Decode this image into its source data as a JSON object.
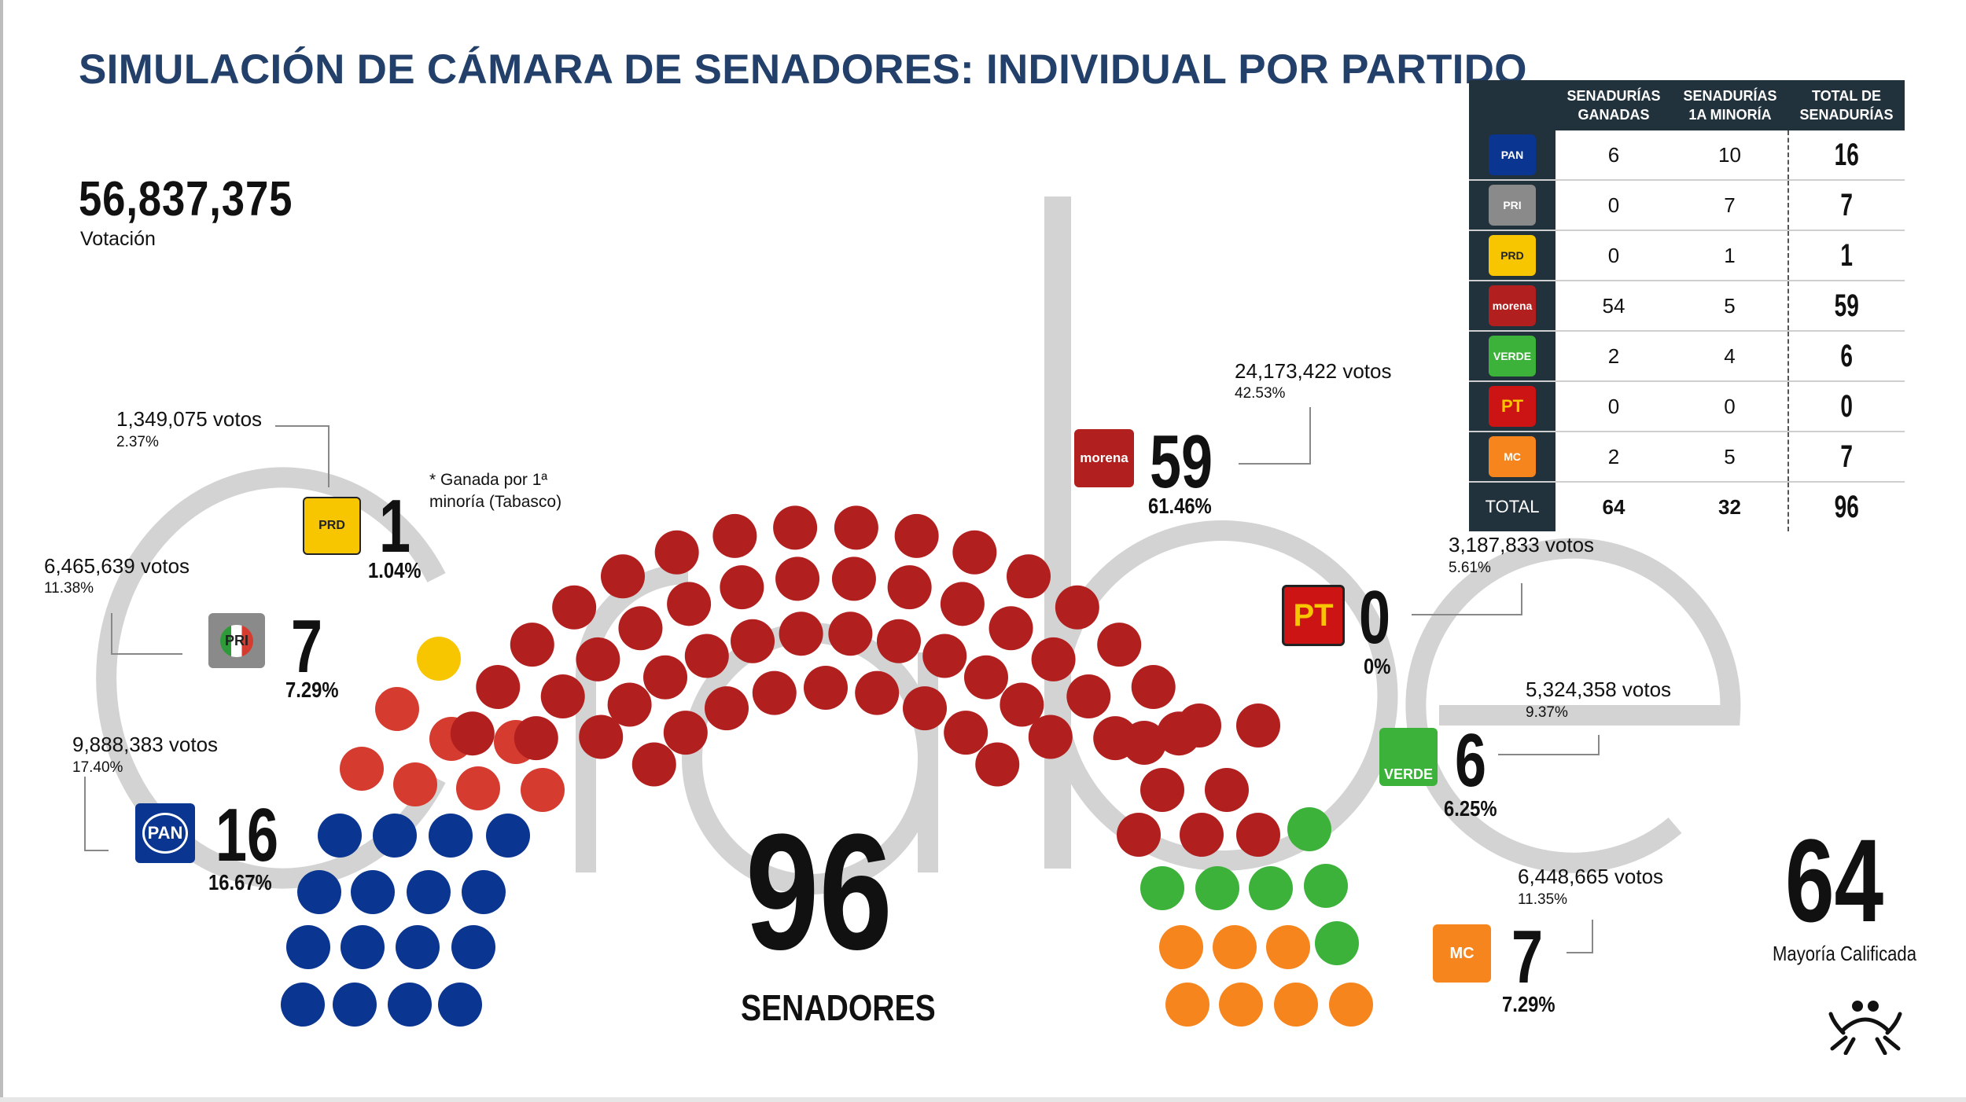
{
  "title": "SIMULACIÓN DE CÁMARA DE SENADORES: INDIVIDUAL POR PARTIDO",
  "total_votes": "56,837,375",
  "total_votes_label": "Votación",
  "center_total": "96",
  "center_label": "SENADORES",
  "majority_number": "64",
  "majority_label": "Mayoría Calificada",
  "watermark": "crabe",
  "note": "* Ganada por 1ª minoría (Tabasco)",
  "colors": {
    "title": "#22406a",
    "pan": "#0a3590",
    "pri": "#d63b2f",
    "prd": "#f7c600",
    "morena": "#b1201f",
    "verde": "#3cb23a",
    "pt": "#cc1414",
    "mc": "#f7851e",
    "table_header": "#22323d"
  },
  "parties": {
    "prd": {
      "logo": "PRD",
      "votes": "1,349,075 votos",
      "pct": "2.37%",
      "seats": "1",
      "seat_pct": "1.04%"
    },
    "pri": {
      "logo": "PRI",
      "votes": "6,465,639 votos",
      "pct": "11.38%",
      "seats": "7",
      "seat_pct": "7.29%"
    },
    "pan": {
      "logo": "PAN",
      "votes": "9,888,383 votos",
      "pct": "17.40%",
      "seats": "16",
      "seat_pct": "16.67%"
    },
    "morena": {
      "logo": "morena",
      "votes": "24,173,422 votos",
      "pct": "42.53%",
      "seats": "59",
      "seat_pct": "61.46%"
    },
    "pt": {
      "logo": "PT",
      "votes": "3,187,833 votos",
      "pct": "5.61%",
      "seats": "0",
      "seat_pct": "0%"
    },
    "verde": {
      "logo": "VERDE",
      "votes": "5,324,358 votos",
      "pct": "9.37%",
      "seats": "6",
      "seat_pct": "6.25%"
    },
    "mc": {
      "logo": "MC",
      "votes": "6,448,665 votos",
      "pct": "11.35%",
      "seats": "7",
      "seat_pct": "7.29%"
    }
  },
  "table": {
    "headers": [
      "SENADURÍAS GANADAS",
      "SENADURÍAS 1A MINORÍA",
      "TOTAL DE SENADURÍAS"
    ],
    "rows": [
      {
        "party": "PAN",
        "ganadas": "6",
        "minoria": "10",
        "total": "16"
      },
      {
        "party": "PRI",
        "ganadas": "0",
        "minoria": "7",
        "total": "7"
      },
      {
        "party": "PRD",
        "ganadas": "0",
        "minoria": "1",
        "total": "1"
      },
      {
        "party": "morena",
        "ganadas": "54",
        "minoria": "5",
        "total": "59"
      },
      {
        "party": "VERDE",
        "ganadas": "2",
        "minoria": "4",
        "total": "6"
      },
      {
        "party": "PT",
        "ganadas": "0",
        "minoria": "0",
        "total": "0"
      },
      {
        "party": "MC",
        "ganadas": "2",
        "minoria": "5",
        "total": "7"
      }
    ],
    "total_row": {
      "label": "TOTAL",
      "ganadas": "64",
      "minoria": "32",
      "total": "96"
    }
  },
  "chart_data": {
    "type": "parliament",
    "total_seats": 96,
    "series": [
      {
        "name": "PAN",
        "values": [
          16
        ]
      },
      {
        "name": "PRI",
        "values": [
          7
        ]
      },
      {
        "name": "PRD",
        "values": [
          1
        ]
      },
      {
        "name": "morena",
        "values": [
          59
        ]
      },
      {
        "name": "PT",
        "values": [
          0
        ]
      },
      {
        "name": "VERDE",
        "values": [
          6
        ]
      },
      {
        "name": "MC",
        "values": [
          7
        ]
      }
    ]
  }
}
